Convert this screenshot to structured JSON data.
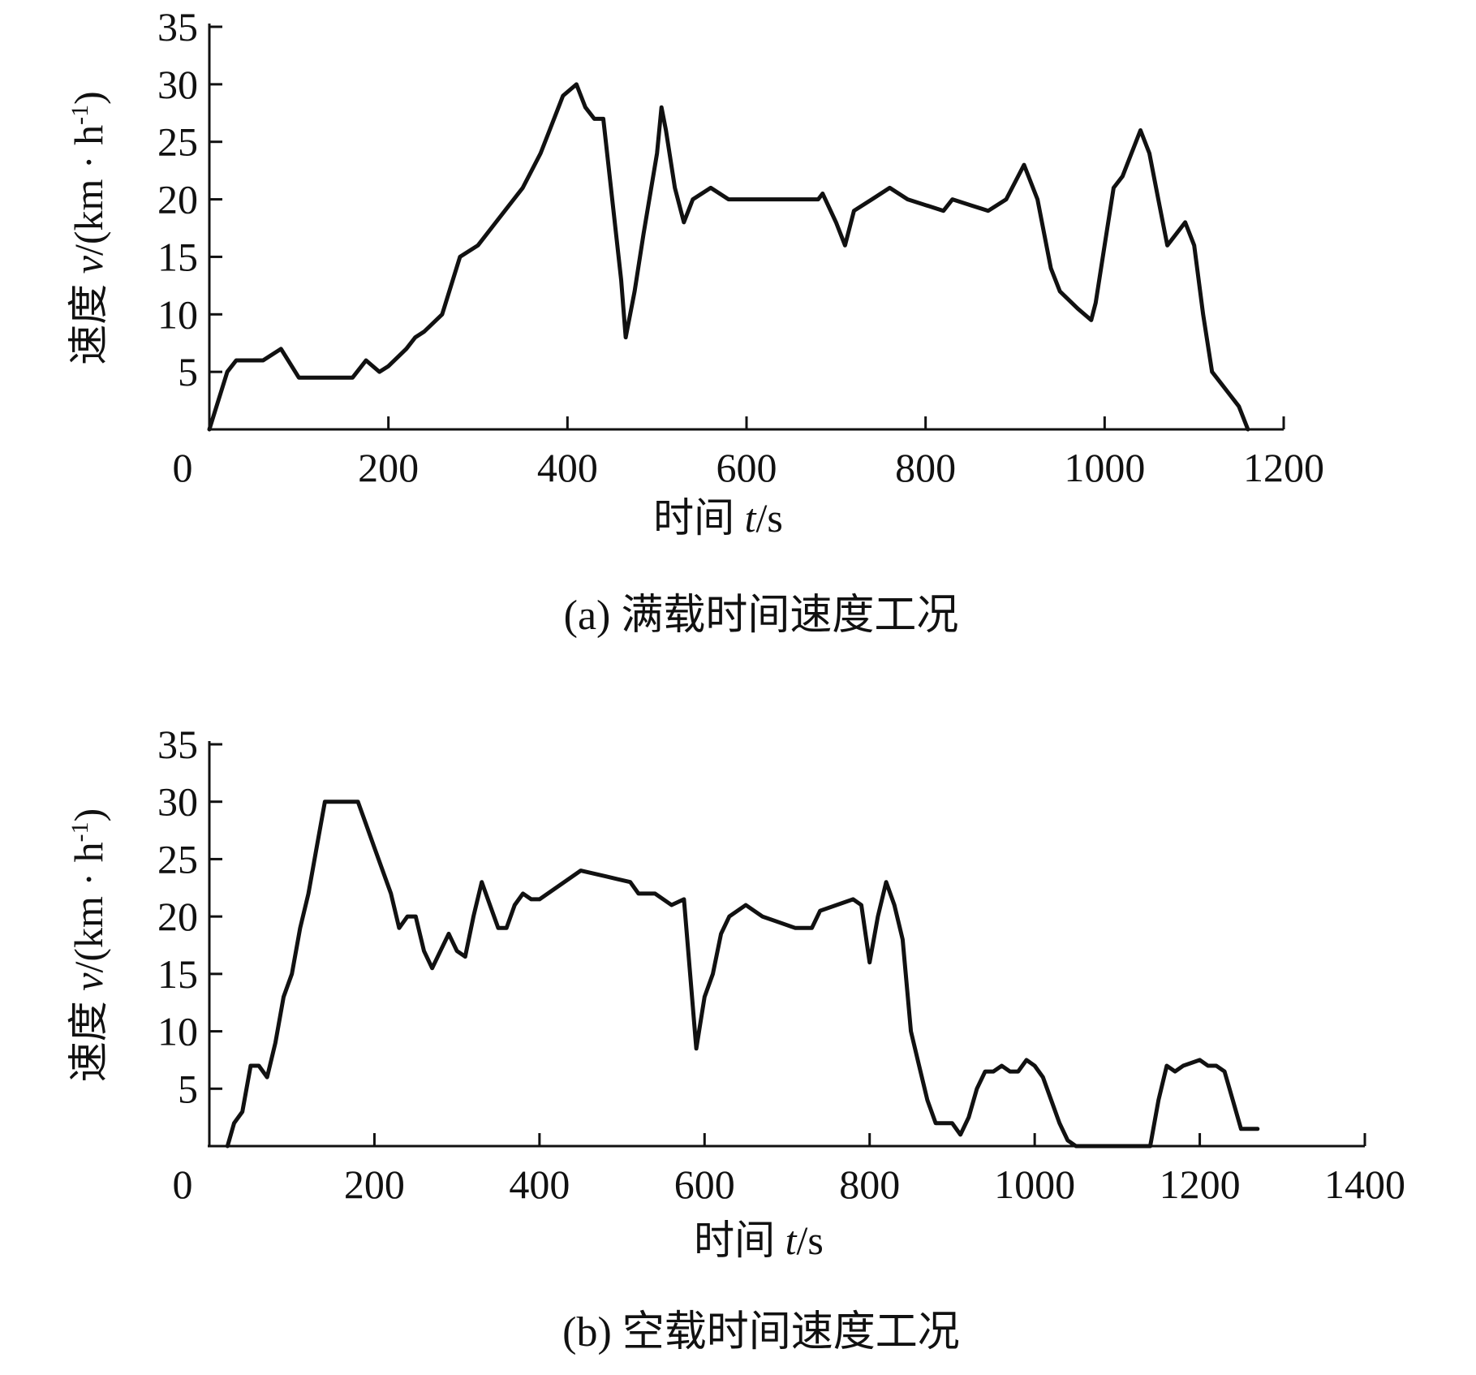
{
  "chart_data": [
    {
      "type": "line",
      "caption": "(a) 满载时间速度工况",
      "xlabel": {
        "text": "时间 ",
        "var": "t",
        "unit": "/s"
      },
      "ylabel": {
        "text": "速度 ",
        "var": "v",
        "unit": "/(km · h",
        "sup": "-1",
        "close": ")"
      },
      "xlim": [
        0,
        1200
      ],
      "ylim": [
        0,
        35
      ],
      "xticks": [
        0,
        200,
        400,
        600,
        800,
        1000,
        1200
      ],
      "yticks": [
        5,
        10,
        15,
        20,
        25,
        30,
        35
      ],
      "x0_label": "0",
      "grid": false,
      "x": [
        0,
        20,
        30,
        40,
        50,
        60,
        80,
        100,
        120,
        140,
        160,
        175,
        190,
        200,
        220,
        230,
        240,
        260,
        280,
        300,
        320,
        340,
        350,
        370,
        380,
        390,
        395,
        410,
        420,
        430,
        440,
        450,
        460,
        465,
        475,
        485,
        500,
        505,
        510,
        520,
        530,
        540,
        560,
        580,
        600,
        620,
        630,
        640,
        660,
        680,
        685,
        700,
        710,
        720,
        740,
        760,
        780,
        800,
        820,
        830,
        850,
        870,
        890,
        910,
        925,
        940,
        950,
        970,
        985,
        990,
        1000,
        1010,
        1020,
        1030,
        1040,
        1050,
        1060,
        1070,
        1080,
        1090,
        1100,
        1110,
        1120,
        1130,
        1140,
        1150,
        1160
      ],
      "y": [
        0,
        5,
        6,
        6,
        6,
        6,
        7,
        4.5,
        4.5,
        4.5,
        4.5,
        6,
        5,
        5.5,
        7,
        8,
        8.5,
        10,
        15,
        16,
        18,
        20,
        21,
        24,
        26,
        28,
        29,
        30,
        28,
        27,
        27,
        20,
        13,
        8,
        12,
        17,
        24,
        28,
        26,
        21,
        18,
        20,
        21,
        20,
        20,
        20,
        20,
        20,
        20,
        20,
        20.5,
        18,
        16,
        19,
        20,
        21,
        20,
        19.5,
        19,
        20,
        19.5,
        19,
        20,
        23,
        20,
        14,
        12,
        10.5,
        9.5,
        11,
        16,
        21,
        22,
        24,
        26,
        24,
        20,
        16,
        17,
        18,
        16,
        10,
        5,
        4,
        3,
        2,
        0
      ]
    },
    {
      "type": "line",
      "caption": "(b) 空载时间速度工况",
      "xlabel": {
        "text": "时间 ",
        "var": "t",
        "unit": "/s"
      },
      "ylabel": {
        "text": "速度 ",
        "var": "v",
        "unit": "/(km · h",
        "sup": "-1",
        "close": ")"
      },
      "xlim": [
        0,
        1400
      ],
      "ylim": [
        0,
        35
      ],
      "xticks": [
        0,
        200,
        400,
        600,
        800,
        1000,
        1200,
        1400
      ],
      "yticks": [
        5,
        10,
        15,
        20,
        25,
        30,
        35
      ],
      "x0_label": "0",
      "grid": false,
      "x": [
        22,
        30,
        40,
        50,
        60,
        70,
        80,
        90,
        100,
        110,
        120,
        130,
        140,
        150,
        180,
        190,
        200,
        210,
        220,
        230,
        240,
        250,
        260,
        270,
        280,
        290,
        300,
        310,
        320,
        330,
        340,
        350,
        360,
        370,
        380,
        390,
        400,
        420,
        450,
        480,
        510,
        520,
        540,
        560,
        575,
        590,
        600,
        610,
        620,
        630,
        650,
        670,
        690,
        710,
        730,
        740,
        760,
        780,
        790,
        800,
        810,
        820,
        830,
        840,
        850,
        860,
        870,
        880,
        890,
        900,
        910,
        920,
        930,
        940,
        950,
        960,
        970,
        980,
        990,
        1000,
        1010,
        1020,
        1030,
        1040,
        1050,
        1060,
        1100,
        1140,
        1150,
        1160,
        1170,
        1180,
        1200,
        1210,
        1220,
        1230,
        1240,
        1250,
        1270
      ],
      "y": [
        0,
        2,
        3,
        7,
        7,
        6,
        9,
        13,
        15,
        19,
        22,
        26,
        30,
        30,
        30,
        28,
        26,
        24,
        22,
        19,
        20,
        20,
        17,
        15.5,
        17,
        18.5,
        17,
        16.5,
        20,
        23,
        21,
        19,
        19,
        21,
        22,
        21.5,
        21.5,
        22.5,
        24,
        23.5,
        23,
        22,
        22,
        21,
        21.5,
        8.5,
        13,
        15,
        18.5,
        20,
        21,
        20,
        19.5,
        19,
        19,
        20.5,
        21,
        21.5,
        21,
        16,
        20,
        23,
        21,
        18,
        10,
        7,
        4,
        2,
        2,
        2,
        1,
        2.5,
        5,
        6.5,
        6.5,
        7,
        6.5,
        6.5,
        7.5,
        7,
        6,
        4,
        2,
        0.5,
        0,
        0,
        0,
        0,
        4,
        7,
        6.5,
        7,
        7.5,
        7,
        7,
        6.5,
        4,
        1.5,
        1.5
      ]
    }
  ]
}
